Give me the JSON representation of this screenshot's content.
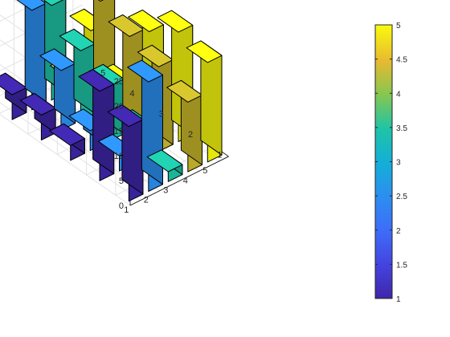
{
  "chart_data": {
    "type": "bar3",
    "title": "",
    "xlabel": "",
    "ylabel": "",
    "zlabel": "",
    "x_ticks": [
      "1",
      "2",
      "3",
      "4",
      "5"
    ],
    "y_ticks": [
      "1",
      "2",
      "3",
      "4",
      "5"
    ],
    "z_ticks": [
      "0",
      "5",
      "10",
      "15",
      "20",
      "25"
    ],
    "zlim": [
      0,
      25
    ],
    "grid": true,
    "values": [
      [
        15,
        18,
        3,
        5,
        5
      ],
      [
        22,
        3,
        4,
        12,
        20
      ],
      [
        2,
        6,
        11,
        14,
        19
      ],
      [
        14,
        17,
        19,
        22,
        2
      ],
      [
        20,
        22,
        18,
        3,
        10
      ]
    ],
    "colorbar": {
      "ticks": [
        "1",
        "1.5",
        "2",
        "2.5",
        "3",
        "3.5",
        "4",
        "4.5",
        "5"
      ],
      "limits": [
        1,
        5
      ]
    }
  }
}
